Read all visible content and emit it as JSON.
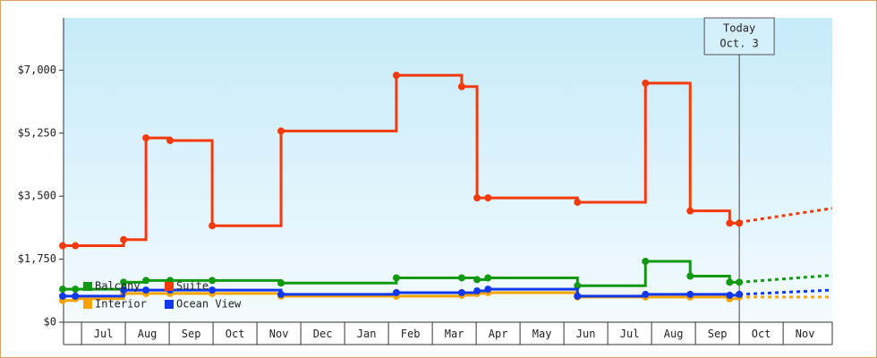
{
  "chart_data": {
    "type": "step",
    "x": [
      -0.43,
      -0.14,
      0.96,
      1.47,
      2.02,
      2.98,
      4.55,
      7.18,
      8.67,
      9.02,
      9.27,
      11.31,
      12.86,
      13.88,
      14.78,
      15.0
    ],
    "xlim": [
      -0.41,
      17.12
    ],
    "categories": [
      "Jul",
      "Aug",
      "Sep",
      "Oct",
      "Nov",
      "Dec",
      "Jan",
      "Feb",
      "Mar",
      "Apr",
      "May",
      "Jun",
      "Jul",
      "Aug",
      "Sep",
      "Oct",
      "Nov"
    ],
    "ylim": [
      0,
      8450
    ],
    "yticks": [
      {
        "value": 0,
        "label": "$0"
      },
      {
        "value": 1750,
        "label": "$1,750"
      },
      {
        "value": 3500,
        "label": "$3,500"
      },
      {
        "value": 5250,
        "label": "$5,250"
      },
      {
        "value": 7000,
        "label": "$7,000"
      }
    ],
    "forecast_x": [
      15.0,
      17.12
    ],
    "series": [
      {
        "name": "Balcony",
        "color": "#119911",
        "values": [
          917,
          917,
          1110,
          1159,
          1159,
          1159,
          1086,
          1231,
          1231,
          1183,
          1231,
          1014,
          1690,
          1279,
          1110,
          1110
        ],
        "forecast": [
          1110,
          1303
        ]
      },
      {
        "name": "Suite",
        "color": "#f23a0c",
        "values": [
          2124,
          2124,
          2293,
          5117,
          5045,
          2679,
          5310,
          6855,
          6541,
          3452,
          3452,
          3331,
          6638,
          3090,
          2752,
          2752
        ],
        "forecast": [
          2776,
          3162
        ]
      },
      {
        "name": "Interior",
        "color": "#f5a300",
        "values": [
          603,
          652,
          797,
          797,
          797,
          797,
          724,
          724,
          748,
          797,
          821,
          700,
          700,
          700,
          652,
          700
        ],
        "forecast": [
          700,
          700
        ]
      },
      {
        "name": "Ocean View",
        "color": "#1238ee",
        "values": [
          724,
          724,
          893,
          893,
          893,
          893,
          772,
          821,
          821,
          869,
          917,
          724,
          772,
          772,
          748,
          772
        ],
        "forecast": [
          772,
          893
        ]
      }
    ],
    "annotation": {
      "lines": [
        "Today",
        "Oct. 3"
      ],
      "x": 15.0
    }
  }
}
